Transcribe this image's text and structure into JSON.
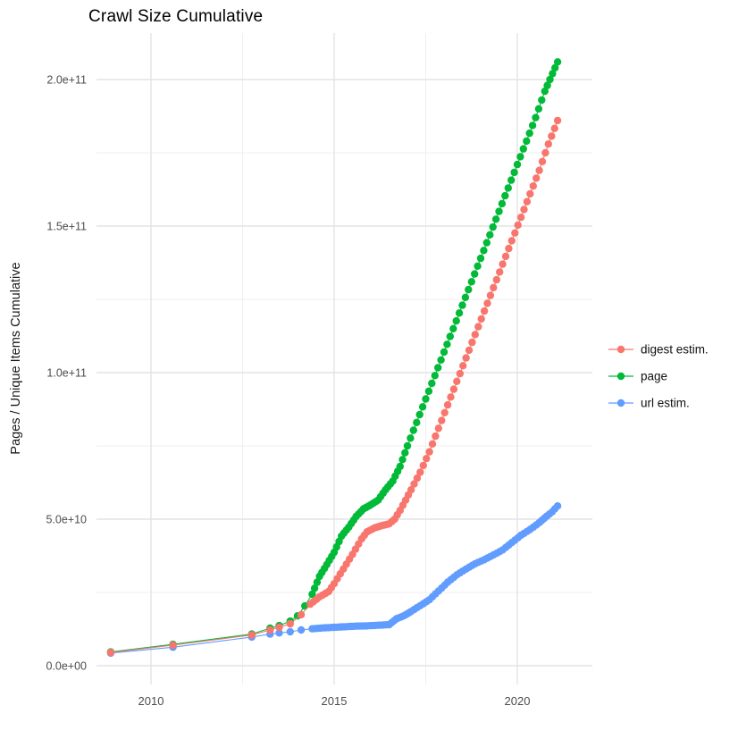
{
  "title": "Crawl Size Cumulative",
  "y_axis": {
    "label": "Pages / Unique Items Cumulative",
    "tick_labels": [
      "0.0e+00",
      "5.0e+10",
      "1.0e+11",
      "1.5e+11",
      "2.0e+11"
    ],
    "tick_values": [
      0,
      50000000000,
      100000000000,
      150000000000,
      200000000000
    ],
    "minor_values": [
      25000000000,
      75000000000,
      125000000000,
      175000000000
    ]
  },
  "x_axis": {
    "tick_labels": [
      "2010",
      "2015",
      "2020"
    ],
    "tick_values": [
      2010,
      2015,
      2020
    ],
    "minor_values": [
      2012.5,
      2017.5
    ]
  },
  "legend": {
    "items": [
      {
        "label": "digest estim.",
        "color": "#F8766D"
      },
      {
        "label": "page",
        "color": "#00BA38"
      },
      {
        "label": "url estim.",
        "color": "#619CFF"
      }
    ]
  },
  "chart_data": {
    "type": "line",
    "title": "Crawl Size Cumulative",
    "xlabel": "",
    "ylabel": "Pages / Unique Items Cumulative",
    "xlim": [
      2008.5,
      2022.0
    ],
    "ylim": [
      0,
      210000000000
    ],
    "grid": "on",
    "legend_position": "right",
    "marker": "point",
    "series": [
      {
        "name": "digest estim.",
        "color": "#F8766D",
        "points": [
          [
            2008.9,
            4500000000.0
          ],
          [
            2010.6,
            7000000000.0
          ],
          [
            2012.75,
            10500000000.0
          ],
          [
            2013.25,
            12200000000.0
          ],
          [
            2013.5,
            13100000000.0
          ],
          [
            2013.8,
            14300000000.0
          ],
          [
            2014.1,
            17400000000.0
          ],
          [
            2014.35,
            21000000000.0
          ],
          [
            2014.6,
            23500000000.0
          ],
          [
            2014.85,
            25300000000.0
          ],
          [
            2015.0,
            28000000000.0
          ],
          [
            2015.25,
            33000000000.0
          ],
          [
            2015.5,
            38000000000.0
          ],
          [
            2015.75,
            43300000000.0
          ],
          [
            2015.9,
            45700000000.0
          ],
          [
            2016.1,
            47000000000.0
          ],
          [
            2016.3,
            47800000000.0
          ],
          [
            2016.5,
            48400000000.0
          ],
          [
            2016.65,
            50000000000.0
          ],
          [
            2016.8,
            53000000000.0
          ],
          [
            2016.95,
            56500000000.0
          ],
          [
            2017.1,
            60000000000.0
          ],
          [
            2017.35,
            66000000000.0
          ],
          [
            2017.6,
            73000000000.0
          ],
          [
            2017.85,
            81000000000.0
          ],
          [
            2018.1,
            89000000000.0
          ],
          [
            2018.35,
            97000000000.0
          ],
          [
            2018.6,
            105000000000.0
          ],
          [
            2018.85,
            113000000000.0
          ],
          [
            2019.1,
            121000000000.0
          ],
          [
            2019.35,
            129000000000.0
          ],
          [
            2019.6,
            137000000000.0
          ],
          [
            2019.85,
            145000000000.0
          ],
          [
            2020.1,
            153000000000.0
          ],
          [
            2020.35,
            161000000000.0
          ],
          [
            2020.6,
            169000000000.0
          ],
          [
            2020.85,
            178000000000.0
          ],
          [
            2021.1,
            186000000000.0
          ]
        ]
      },
      {
        "name": "page",
        "color": "#00BA38",
        "points": [
          [
            2008.9,
            4700000000.0
          ],
          [
            2010.6,
            7300000000.0
          ],
          [
            2012.75,
            10800000000.0
          ],
          [
            2013.25,
            12800000000.0
          ],
          [
            2013.5,
            13700000000.0
          ],
          [
            2013.8,
            15200000000.0
          ],
          [
            2014.0,
            17000000000.0
          ],
          [
            2014.2,
            20400000000.0
          ],
          [
            2014.4,
            24400000000.0
          ],
          [
            2014.6,
            30500000000.0
          ],
          [
            2014.8,
            34500000000.0
          ],
          [
            2015.0,
            38700000000.0
          ],
          [
            2015.2,
            44200000000.0
          ],
          [
            2015.4,
            47300000000.0
          ],
          [
            2015.6,
            50900000000.0
          ],
          [
            2015.8,
            53500000000.0
          ],
          [
            2016.0,
            54900000000.0
          ],
          [
            2016.2,
            56500000000.0
          ],
          [
            2016.4,
            60000000000.0
          ],
          [
            2016.6,
            63000000000.0
          ],
          [
            2016.8,
            68000000000.0
          ],
          [
            2017.0,
            75000000000.0
          ],
          [
            2017.25,
            83000000000.0
          ],
          [
            2017.5,
            91000000000.0
          ],
          [
            2017.75,
            99000000000.0
          ],
          [
            2018.0,
            107000000000.0
          ],
          [
            2018.25,
            115000000000.0
          ],
          [
            2018.5,
            123000000000.0
          ],
          [
            2018.75,
            131000000000.0
          ],
          [
            2019.0,
            139000000000.0
          ],
          [
            2019.25,
            147000000000.0
          ],
          [
            2019.5,
            155000000000.0
          ],
          [
            2019.75,
            163000000000.0
          ],
          [
            2020.0,
            171000000000.0
          ],
          [
            2020.25,
            179000000000.0
          ],
          [
            2020.5,
            187000000000.0
          ],
          [
            2020.75,
            196000000000.0
          ],
          [
            2021.1,
            206000000000.0
          ]
        ]
      },
      {
        "name": "url estim.",
        "color": "#619CFF",
        "points": [
          [
            2008.9,
            4300000000.0
          ],
          [
            2010.6,
            6300000000.0
          ],
          [
            2012.75,
            9800000000.0
          ],
          [
            2013.25,
            10800000000.0
          ],
          [
            2013.5,
            11200000000.0
          ],
          [
            2013.8,
            11600000000.0
          ],
          [
            2014.1,
            12200000000.0
          ],
          [
            2014.4,
            12600000000.0
          ],
          [
            2014.7,
            12900000000.0
          ],
          [
            2015.0,
            13100000000.0
          ],
          [
            2015.3,
            13300000000.0
          ],
          [
            2015.6,
            13500000000.0
          ],
          [
            2015.9,
            13600000000.0
          ],
          [
            2016.2,
            13800000000.0
          ],
          [
            2016.5,
            14000000000.0
          ],
          [
            2016.7,
            16000000000.0
          ],
          [
            2016.9,
            17000000000.0
          ],
          [
            2017.1,
            18500000000.0
          ],
          [
            2017.35,
            20500000000.0
          ],
          [
            2017.6,
            22500000000.0
          ],
          [
            2017.85,
            25500000000.0
          ],
          [
            2018.1,
            28500000000.0
          ],
          [
            2018.35,
            31000000000.0
          ],
          [
            2018.6,
            33000000000.0
          ],
          [
            2018.85,
            34800000000.0
          ],
          [
            2019.1,
            36200000000.0
          ],
          [
            2019.35,
            37800000000.0
          ],
          [
            2019.6,
            39500000000.0
          ],
          [
            2019.85,
            42000000000.0
          ],
          [
            2020.1,
            44500000000.0
          ],
          [
            2020.35,
            46500000000.0
          ],
          [
            2020.6,
            48800000000.0
          ],
          [
            2020.8,
            51000000000.0
          ],
          [
            2020.95,
            52500000000.0
          ],
          [
            2021.1,
            54500000000.0
          ]
        ]
      }
    ]
  }
}
